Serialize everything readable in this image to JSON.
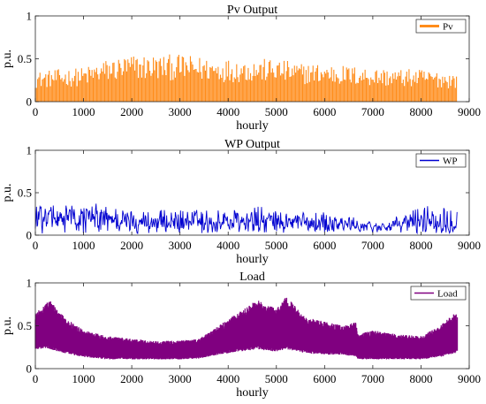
{
  "chart_data": [
    {
      "type": "line",
      "title": "Pv Output",
      "xlabel": "hourly",
      "ylabel": "p.u.",
      "xlim": [
        0,
        9000
      ],
      "ylim": [
        0,
        1
      ],
      "x_ticks": [
        0,
        1000,
        2000,
        3000,
        4000,
        5000,
        6000,
        7000,
        8000,
        9000
      ],
      "y_ticks": [
        0,
        0.5,
        1
      ],
      "y_tick_labels": [
        "0",
        "0.5",
        "1"
      ],
      "grid": false,
      "legend_position": "top-right",
      "series": [
        {
          "name": "Pv",
          "color": "#ff8c1a",
          "hours": 8760,
          "pattern": "daily on/off; peak envelope by hour",
          "envelope_x": [
            0,
            500,
            1000,
            1500,
            2000,
            2500,
            3000,
            3500,
            4000,
            4500,
            5000,
            5500,
            6000,
            6500,
            7000,
            7500,
            8000,
            8500,
            8760
          ],
          "envelope_y": [
            0.35,
            0.38,
            0.4,
            0.5,
            0.55,
            0.55,
            0.55,
            0.52,
            0.5,
            0.5,
            0.5,
            0.45,
            0.45,
            0.42,
            0.4,
            0.38,
            0.38,
            0.35,
            0.33
          ]
        }
      ]
    },
    {
      "type": "line",
      "title": "WP Output",
      "xlabel": "hourly",
      "ylabel": "p.u.",
      "xlim": [
        0,
        9000
      ],
      "ylim": [
        0,
        1
      ],
      "x_ticks": [
        0,
        1000,
        2000,
        3000,
        4000,
        5000,
        6000,
        7000,
        8000,
        9000
      ],
      "y_ticks": [
        0,
        0.5,
        1
      ],
      "y_tick_labels": [
        "0",
        "0.5",
        "1"
      ],
      "grid": false,
      "legend_position": "top-right",
      "series": [
        {
          "name": "WP",
          "color": "#0000d0",
          "hours": 8760,
          "range_x": [
            0,
            1000,
            1300,
            2000,
            3000,
            4000,
            4600,
            5000,
            6000,
            7000,
            7500,
            8000,
            8700
          ],
          "range_max": [
            0.35,
            0.35,
            0.38,
            0.3,
            0.3,
            0.3,
            0.35,
            0.28,
            0.3,
            0.15,
            0.22,
            0.35,
            0.35
          ],
          "range_min": [
            0.02,
            0.02,
            0.02,
            0.02,
            0.02,
            0.02,
            0.02,
            0.02,
            0.02,
            0.03,
            0.03,
            0.02,
            0.02
          ]
        }
      ]
    },
    {
      "type": "line",
      "title": "Load",
      "xlabel": "hourly",
      "ylabel": "p.u.",
      "xlim": [
        0,
        9000
      ],
      "ylim": [
        0,
        1
      ],
      "x_ticks": [
        0,
        1000,
        2000,
        3000,
        4000,
        5000,
        6000,
        7000,
        8000,
        9000
      ],
      "y_ticks": [
        0,
        0.5,
        1
      ],
      "y_tick_labels": [
        "0",
        "0.5",
        "1"
      ],
      "grid": false,
      "legend_position": "top-right",
      "series": [
        {
          "name": "Load",
          "color": "#800080",
          "hours": 8760,
          "band_x": [
            0,
            300,
            600,
            1000,
            1500,
            2000,
            2500,
            3000,
            3400,
            3800,
            4200,
            4600,
            5000,
            5200,
            5600,
            6000,
            6400,
            6650,
            6700,
            7000,
            7500,
            8000,
            8400,
            8700
          ],
          "band_upper": [
            0.65,
            0.8,
            0.6,
            0.45,
            0.38,
            0.35,
            0.32,
            0.33,
            0.35,
            0.5,
            0.65,
            0.8,
            0.7,
            0.85,
            0.6,
            0.55,
            0.5,
            0.55,
            0.4,
            0.45,
            0.4,
            0.38,
            0.5,
            0.65
          ],
          "band_lower": [
            0.25,
            0.25,
            0.2,
            0.15,
            0.12,
            0.12,
            0.12,
            0.12,
            0.13,
            0.18,
            0.22,
            0.25,
            0.22,
            0.25,
            0.2,
            0.18,
            0.18,
            0.15,
            0.12,
            0.12,
            0.12,
            0.12,
            0.15,
            0.2
          ]
        }
      ]
    }
  ]
}
